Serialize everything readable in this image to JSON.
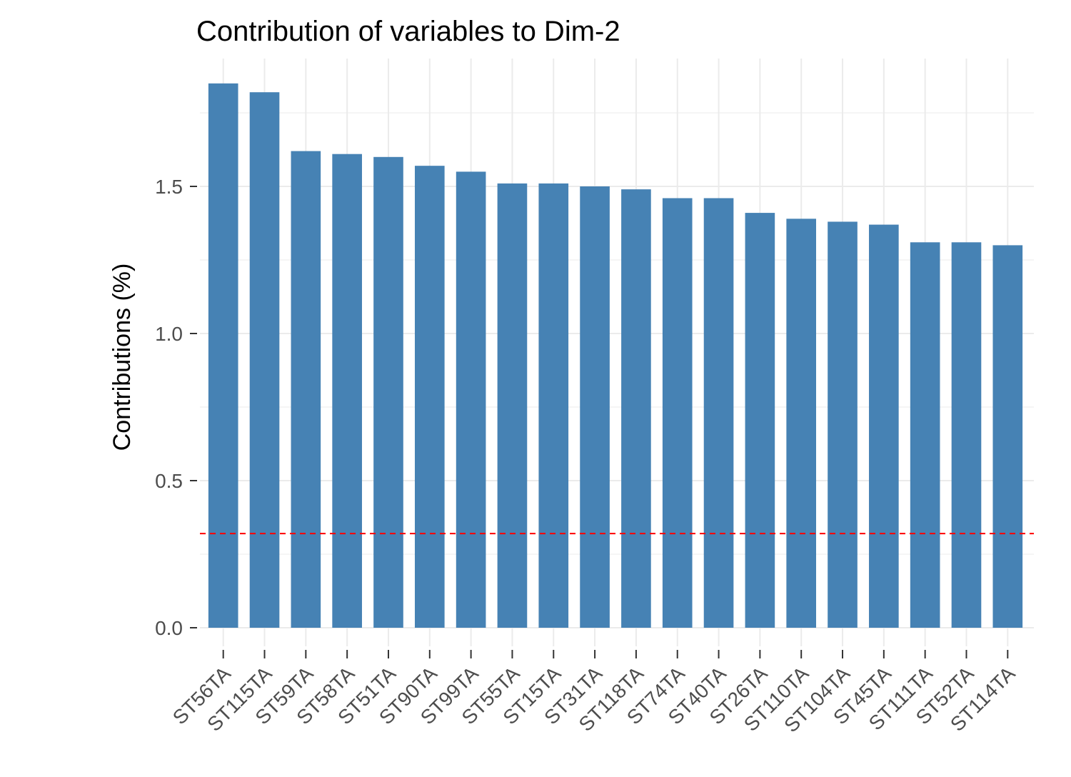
{
  "chart_data": {
    "type": "bar",
    "title": "Contribution of variables to Dim-2",
    "xlabel": "",
    "ylabel": "Contributions (%)",
    "categories": [
      "ST56TA",
      "ST115TA",
      "ST59TA",
      "ST58TA",
      "ST51TA",
      "ST90TA",
      "ST99TA",
      "ST55TA",
      "ST15TA",
      "ST31TA",
      "ST118TA",
      "ST74TA",
      "ST40TA",
      "ST26TA",
      "ST110TA",
      "ST104TA",
      "ST45TA",
      "ST111TA",
      "ST52TA",
      "ST114TA"
    ],
    "values": [
      1.85,
      1.82,
      1.62,
      1.61,
      1.6,
      1.57,
      1.55,
      1.51,
      1.51,
      1.5,
      1.49,
      1.46,
      1.46,
      1.41,
      1.39,
      1.38,
      1.37,
      1.31,
      1.31,
      1.3
    ],
    "ylim": [
      0,
      1.95
    ],
    "yticks": [
      0.0,
      0.5,
      1.0,
      1.5
    ],
    "ytick_labels": [
      "0.0",
      "0.5",
      "1.0",
      "1.5"
    ],
    "reference_line": 0.32,
    "grid": true,
    "colors": {
      "bar": "#4682b4",
      "reference": "#ff0000",
      "grid": "#ebebeb"
    }
  }
}
